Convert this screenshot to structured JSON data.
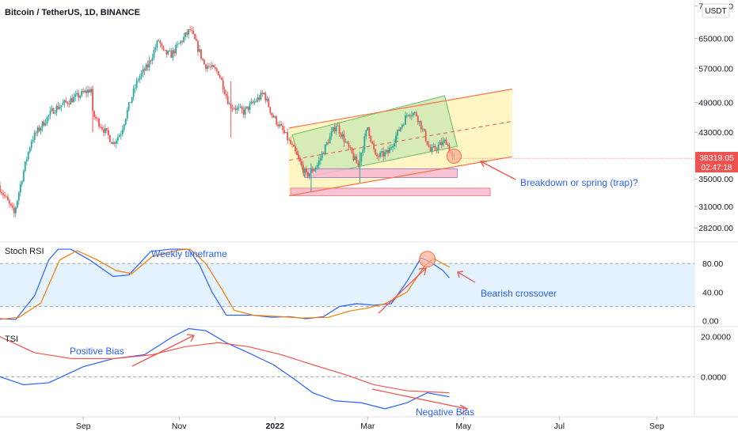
{
  "chart_data": [
    {
      "type": "candlestick",
      "title": "Bitcoin / TetherUS, 1D, BINANCE",
      "currency": "USDT",
      "y_tick_labels": [
        "75000.00",
        "65000.00",
        "57000.00",
        "49000.00",
        "43000.00",
        "35000.00",
        "31000.00",
        "28200.00"
      ],
      "y_ticks": [
        75000,
        65000,
        57000,
        49000,
        43000,
        35000,
        31000,
        28200
      ],
      "ylim": [
        26500,
        77000
      ],
      "log_scale": true,
      "last_price": "38319.05",
      "countdown": "02:47:18",
      "last_price_value": 38319,
      "x_tick_labels": [
        "Sep",
        "Nov",
        "2022",
        "Mar",
        "May",
        "Jul",
        "Sep"
      ],
      "x_range": [
        "2021-07-10",
        "2022-09-25"
      ],
      "price_path": [
        [
          "2021-07-10",
          34000
        ],
        [
          "2021-07-20",
          30000
        ],
        [
          "2021-07-22",
          32000
        ],
        [
          "2021-07-31",
          41500
        ],
        [
          "2021-08-14",
          47500
        ],
        [
          "2021-08-22",
          49000
        ],
        [
          "2021-09-07",
          52000
        ],
        [
          "2021-09-08",
          46500
        ],
        [
          "2021-09-21",
          41000
        ],
        [
          "2021-09-26",
          43000
        ],
        [
          "2021-10-07",
          54500
        ],
        [
          "2021-10-13",
          57500
        ],
        [
          "2021-10-20",
          64500
        ],
        [
          "2021-10-23",
          61000
        ],
        [
          "2021-10-28",
          60500
        ],
        [
          "2021-11-09",
          67500
        ],
        [
          "2021-11-18",
          58000
        ],
        [
          "2021-11-27",
          56000
        ],
        [
          "2021-12-04",
          48500
        ],
        [
          "2021-12-13",
          47000
        ],
        [
          "2021-12-26",
          51000
        ],
        [
          "2021-12-31",
          46500
        ],
        [
          "2022-01-10",
          41800
        ],
        [
          "2022-01-22",
          35500
        ],
        [
          "2022-01-29",
          37200
        ],
        [
          "2022-02-10",
          44500
        ],
        [
          "2022-02-17",
          40500
        ],
        [
          "2022-02-24",
          37000
        ],
        [
          "2022-03-02",
          44000
        ],
        [
          "2022-03-07",
          38500
        ],
        [
          "2022-03-15",
          39300
        ],
        [
          "2022-03-28",
          47000
        ],
        [
          "2022-04-02",
          46500
        ],
        [
          "2022-04-11",
          39500
        ],
        [
          "2022-04-21",
          41400
        ],
        [
          "2022-04-25",
          38319
        ]
      ],
      "annotations": [
        {
          "text": "Breakdown or spring (trap)?",
          "color": "#2962ff"
        }
      ],
      "channel_color": "#ff7043",
      "channel_fill": "#fff3b0",
      "inner_box_fill": "#cfe9b4",
      "support_zone_fill": "#f8bbd0"
    },
    {
      "type": "line",
      "title": "Stoch RSI",
      "y_tick_labels": [
        "80.00",
        "40.00",
        "0.00"
      ],
      "y_ticks": [
        80,
        40,
        0
      ],
      "ylim": [
        -8,
        110
      ],
      "band": [
        20,
        80
      ],
      "band_fill": "#e3f2fd",
      "series": [
        {
          "color": "#2962ff",
          "points": [
            [
              "2021-07-10",
              3
            ],
            [
              "2021-07-20",
              2
            ],
            [
              "2021-08-01",
              35
            ],
            [
              "2021-08-10",
              85
            ],
            [
              "2021-08-16",
              100
            ],
            [
              "2021-08-24",
              100
            ],
            [
              "2021-09-05",
              85
            ],
            [
              "2021-09-20",
              62
            ],
            [
              "2021-09-30",
              64
            ],
            [
              "2021-10-14",
              97
            ],
            [
              "2021-10-27",
              100
            ],
            [
              "2021-11-07",
              100
            ],
            [
              "2021-11-14",
              78
            ],
            [
              "2021-11-22",
              40
            ],
            [
              "2021-12-01",
              8
            ],
            [
              "2021-12-08",
              8
            ],
            [
              "2021-12-18",
              8
            ],
            [
              "2021-12-30",
              5
            ],
            [
              "2022-01-10",
              6
            ],
            [
              "2022-01-21",
              3
            ],
            [
              "2022-02-01",
              6
            ],
            [
              "2022-02-11",
              20
            ],
            [
              "2022-02-22",
              24
            ],
            [
              "2022-03-05",
              22
            ],
            [
              "2022-03-16",
              24
            ],
            [
              "2022-03-26",
              55
            ],
            [
              "2022-04-04",
              88
            ],
            [
              "2022-04-10",
              82
            ],
            [
              "2022-04-18",
              70
            ],
            [
              "2022-04-22",
              60
            ]
          ]
        },
        {
          "color": "#f57c00",
          "points": [
            [
              "2021-07-10",
              2
            ],
            [
              "2021-07-22",
              5
            ],
            [
              "2021-08-05",
              25
            ],
            [
              "2021-08-17",
              85
            ],
            [
              "2021-08-28",
              98
            ],
            [
              "2021-09-10",
              85
            ],
            [
              "2021-09-22",
              70
            ],
            [
              "2021-10-02",
              66
            ],
            [
              "2021-10-15",
              90
            ],
            [
              "2021-11-01",
              99
            ],
            [
              "2021-11-08",
              100
            ],
            [
              "2021-11-18",
              80
            ],
            [
              "2021-11-28",
              45
            ],
            [
              "2021-12-06",
              15
            ],
            [
              "2021-12-18",
              8
            ],
            [
              "2022-01-05",
              6
            ],
            [
              "2022-01-18",
              4
            ],
            [
              "2022-02-04",
              5
            ],
            [
              "2022-02-18",
              14
            ],
            [
              "2022-03-01",
              18
            ],
            [
              "2022-03-12",
              24
            ],
            [
              "2022-03-26",
              40
            ],
            [
              "2022-04-06",
              76
            ],
            [
              "2022-04-12",
              87
            ],
            [
              "2022-04-22",
              75
            ]
          ]
        }
      ],
      "annotations": [
        {
          "text": "Weekly timeframe",
          "color": "#2962ff"
        },
        {
          "text": "Bearish crossover",
          "color": "#2962ff"
        }
      ]
    },
    {
      "type": "line",
      "title": "TSI",
      "y_tick_labels": [
        "20.0000",
        "0.0000"
      ],
      "y_ticks": [
        20,
        0
      ],
      "ylim": [
        -20,
        25
      ],
      "series": [
        {
          "color": "#2962ff",
          "points": [
            [
              "2021-07-10",
              0
            ],
            [
              "2021-07-25",
              -4
            ],
            [
              "2021-08-10",
              -3
            ],
            [
              "2021-09-01",
              5
            ],
            [
              "2021-09-20",
              9
            ],
            [
              "2021-10-10",
              11
            ],
            [
              "2021-10-28",
              20
            ],
            [
              "2021-11-07",
              24
            ],
            [
              "2021-11-18",
              23
            ],
            [
              "2021-12-01",
              17
            ],
            [
              "2021-12-15",
              12
            ],
            [
              "2021-12-31",
              6
            ],
            [
              "2022-01-13",
              -1
            ],
            [
              "2022-01-25",
              -8
            ],
            [
              "2022-02-08",
              -12
            ],
            [
              "2022-02-25",
              -13
            ],
            [
              "2022-03-12",
              -16
            ],
            [
              "2022-03-26",
              -13
            ],
            [
              "2022-04-08",
              -8
            ],
            [
              "2022-04-22",
              -10
            ]
          ]
        },
        {
          "color": "#f05350",
          "points": [
            [
              "2021-07-10",
              20
            ],
            [
              "2021-08-01",
              12
            ],
            [
              "2021-08-25",
              9
            ],
            [
              "2021-09-20",
              9
            ],
            [
              "2021-10-15",
              11
            ],
            [
              "2021-11-05",
              15
            ],
            [
              "2021-11-26",
              17
            ],
            [
              "2021-12-15",
              15
            ],
            [
              "2022-01-05",
              11
            ],
            [
              "2022-01-25",
              6
            ],
            [
              "2022-02-15",
              1
            ],
            [
              "2022-03-05",
              -4
            ],
            [
              "2022-03-26",
              -7
            ],
            [
              "2022-04-22",
              -8
            ]
          ]
        }
      ],
      "annotations": [
        {
          "text": "Positive Bias",
          "color": "#2962ff"
        },
        {
          "text": "Negative Bias",
          "color": "#2962ff"
        }
      ]
    }
  ]
}
